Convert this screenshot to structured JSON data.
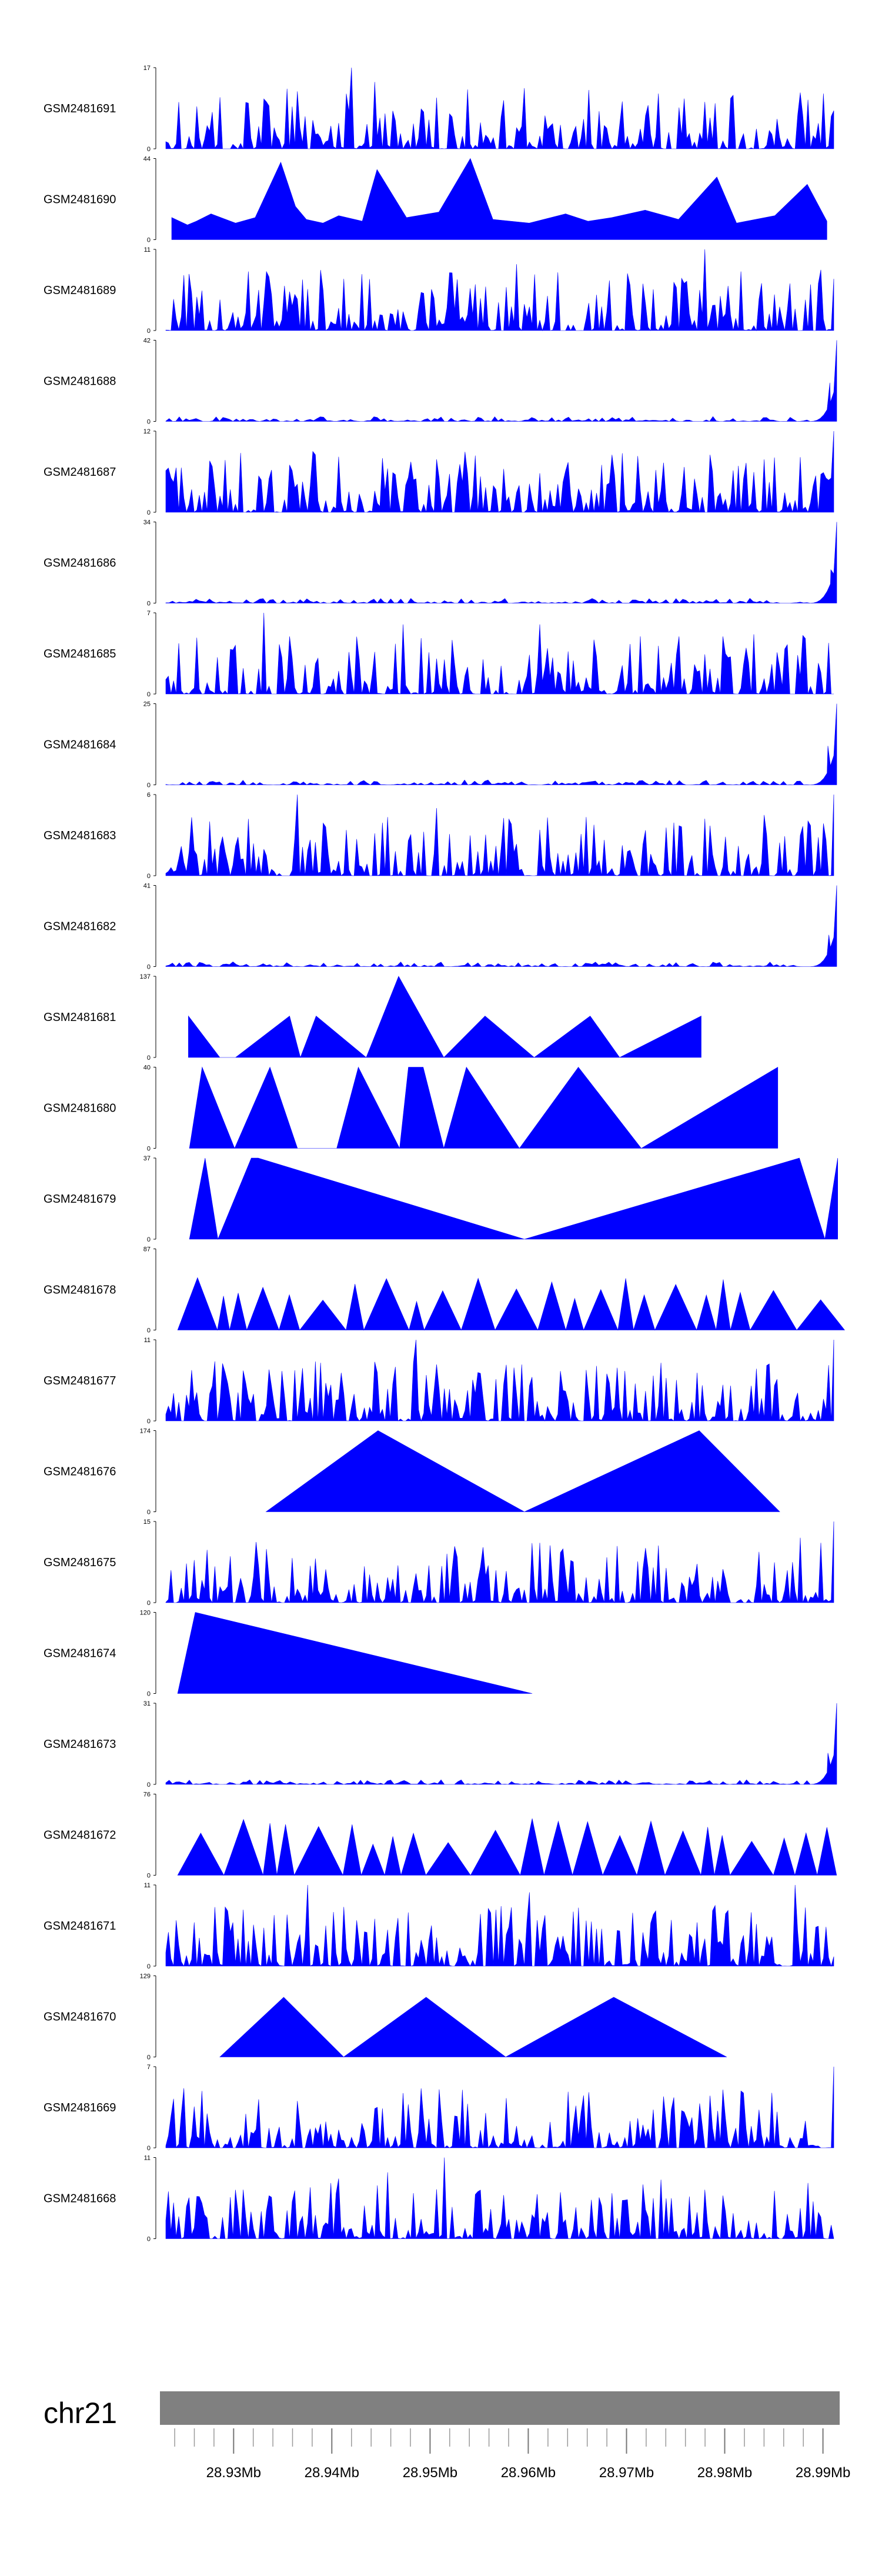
{
  "chart_data": {
    "type": "area",
    "title": "",
    "xlabel": "",
    "ylabel": "",
    "chromosome": "chr21",
    "xlim": [
      28.9225,
      28.9917
    ],
    "x_tick_labels": [
      "28.93Mb",
      "28.94Mb",
      "28.95Mb",
      "28.96Mb",
      "28.97Mb",
      "28.98Mb",
      "28.99Mb"
    ],
    "x_tick_values": [
      28.93,
      28.94,
      28.95,
      28.96,
      28.97,
      28.98,
      28.99
    ],
    "fill_color": "#0000ff",
    "ideogram_color": "#808080",
    "tracks": [
      {
        "name": "GSM2481691",
        "ymax": 17,
        "tick_labels": [
          "17",
          "0"
        ],
        "pattern": "dense",
        "peaks": [
          [
            28.9419,
            17
          ],
          [
            28.9444,
            14
          ],
          [
            28.9336,
            9
          ],
          [
            28.9381,
            6
          ],
          [
            28.9913,
            8
          ]
        ],
        "x": [],
        "y": []
      },
      {
        "name": "GSM2481690",
        "ymax": 44,
        "tick_labels": [
          "44",
          "0"
        ],
        "pattern": "sparse-triangles",
        "peaks": [],
        "x": [
          28.9237,
          28.9253,
          28.9262,
          28.9277,
          28.9302,
          28.9322,
          28.9348,
          28.9363,
          28.9374,
          28.9391,
          28.9407,
          28.9431,
          28.9446,
          28.9476,
          28.9509,
          28.9541,
          28.9564,
          28.9601,
          28.9638,
          28.9661,
          28.9685,
          28.9719,
          28.9753,
          28.9792,
          28.9812,
          28.9851,
          28.9884,
          28.9904
        ],
        "y": [
          12,
          8,
          10,
          14,
          9,
          12,
          42,
          18,
          11,
          9,
          13,
          10,
          38,
          12,
          15,
          44,
          11,
          9,
          14,
          10,
          12,
          16,
          11,
          34,
          9,
          13,
          30,
          10
        ]
      },
      {
        "name": "GSM2481689",
        "ymax": 11,
        "tick_labels": [
          "11",
          "0"
        ],
        "pattern": "dense",
        "peaks": [
          [
            28.9779,
            11
          ],
          [
            28.9587,
            9
          ],
          [
            28.9412,
            7
          ],
          [
            28.9316,
            8
          ]
        ],
        "x": [],
        "y": []
      },
      {
        "name": "GSM2481688",
        "ymax": 42,
        "tick_labels": [
          "42",
          "0"
        ],
        "pattern": "low-rise",
        "peaks": [
          [
            28.9914,
            42
          ],
          [
            28.9907,
            20
          ]
        ],
        "x": [],
        "y": []
      },
      {
        "name": "GSM2481687",
        "ymax": 12,
        "tick_labels": [
          "12",
          "0"
        ],
        "pattern": "dense",
        "peaks": [
          [
            28.9912,
            12
          ],
          [
            28.9451,
            8
          ],
          [
            28.9676,
            7
          ]
        ],
        "x": [],
        "y": []
      },
      {
        "name": "GSM2481686",
        "ymax": 34,
        "tick_labels": [
          "34",
          "0"
        ],
        "pattern": "low-rise",
        "peaks": [
          [
            28.9914,
            34
          ],
          [
            28.9908,
            14
          ]
        ],
        "x": [],
        "y": []
      },
      {
        "name": "GSM2481685",
        "ymax": 7,
        "tick_labels": [
          "7",
          "0"
        ],
        "pattern": "dense",
        "peaks": [
          [
            28.9331,
            7
          ],
          [
            28.9473,
            6
          ],
          [
            28.9612,
            6
          ]
        ],
        "x": [],
        "y": []
      },
      {
        "name": "GSM2481684",
        "ymax": 25,
        "tick_labels": [
          "25",
          "0"
        ],
        "pattern": "low-rise",
        "peaks": [
          [
            28.9914,
            25
          ],
          [
            28.9905,
            12
          ]
        ],
        "x": [],
        "y": []
      },
      {
        "name": "GSM2481683",
        "ymax": 6,
        "tick_labels": [
          "6",
          "0"
        ],
        "pattern": "dense",
        "peaks": [
          [
            28.9364,
            6
          ],
          [
            28.9506,
            5
          ],
          [
            28.9912,
            6
          ]
        ],
        "x": [],
        "y": []
      },
      {
        "name": "GSM2481682",
        "ymax": 41,
        "tick_labels": [
          "41",
          "0"
        ],
        "pattern": "low-rise",
        "peaks": [
          [
            28.9914,
            41
          ],
          [
            28.9906,
            16
          ]
        ],
        "x": [],
        "y": []
      },
      {
        "name": "GSM2481681",
        "ymax": 137,
        "tick_labels": [
          "137",
          "0"
        ],
        "pattern": "sparse-triangles",
        "peaks": [],
        "x": [
          28.9254,
          28.9286,
          28.9302,
          28.9357,
          28.9368,
          28.9384,
          28.9435,
          28.9468,
          28.9514,
          28.9556,
          28.9606,
          28.9663,
          28.9693,
          28.9776
        ],
        "y": [
          70,
          0,
          0,
          70,
          0,
          70,
          0,
          137,
          0,
          70,
          0,
          70,
          0,
          70
        ]
      },
      {
        "name": "GSM2481680",
        "ymax": 40,
        "tick_labels": [
          "40",
          "0"
        ],
        "pattern": "sparse-triangles",
        "peaks": [],
        "x": [
          28.9255,
          28.9268,
          28.9301,
          28.9337,
          28.9365,
          28.9405,
          28.9427,
          28.9469,
          28.9478,
          28.9493,
          28.9514,
          28.9537,
          28.9591,
          28.9651,
          28.9715,
          28.9854
        ],
        "y": [
          0,
          40,
          0,
          40,
          0,
          0,
          40,
          0,
          40,
          40,
          0,
          40,
          0,
          40,
          0,
          40
        ]
      },
      {
        "name": "GSM2481679",
        "ymax": 37,
        "tick_labels": [
          "37",
          "0"
        ],
        "pattern": "sparse-triangles",
        "peaks": [],
        "x": [
          28.9255,
          28.9271,
          28.9284,
          28.9318,
          28.9325,
          28.9596,
          28.9876,
          28.9902,
          28.9915
        ],
        "y": [
          0,
          37,
          0,
          37,
          37,
          0,
          37,
          0,
          37
        ]
      },
      {
        "name": "GSM2481678",
        "ymax": 87,
        "tick_labels": [
          "87",
          "0"
        ],
        "pattern": "sparse-triangles",
        "peaks": [],
        "x": [],
        "y": []
      },
      {
        "name": "GSM2481677",
        "ymax": 11,
        "tick_labels": [
          "11",
          "0"
        ],
        "pattern": "dense",
        "peaks": [
          [
            28.9485,
            11
          ],
          [
            28.9443,
            8
          ],
          [
            28.9913,
            11
          ]
        ],
        "x": [],
        "y": []
      },
      {
        "name": "GSM2481676",
        "ymax": 174,
        "tick_labels": [
          "174",
          "0"
        ],
        "pattern": "sparse-triangles",
        "peaks": [],
        "x": [
          28.9333,
          28.9447,
          28.9596,
          28.9774,
          28.9856
        ],
        "y": [
          0,
          174,
          0,
          174,
          0
        ]
      },
      {
        "name": "GSM2481675",
        "ymax": 15,
        "tick_labels": [
          "15",
          "0"
        ],
        "pattern": "dense",
        "peaks": [
          [
            28.9913,
            15
          ],
          [
            28.9878,
            12
          ],
          [
            28.9605,
            11
          ]
        ],
        "x": [],
        "y": []
      },
      {
        "name": "GSM2481674",
        "ymax": 120,
        "tick_labels": [
          "120",
          "0"
        ],
        "pattern": "sparse-triangles",
        "peaks": [],
        "x": [
          28.9243,
          28.9261,
          28.9604
        ],
        "y": [
          0,
          120,
          0
        ]
      },
      {
        "name": "GSM2481673",
        "ymax": 31,
        "tick_labels": [
          "31",
          "0"
        ],
        "pattern": "low-rise",
        "peaks": [
          [
            28.9914,
            31
          ],
          [
            28.9905,
            12
          ]
        ],
        "x": [],
        "y": []
      },
      {
        "name": "GSM2481672",
        "ymax": 76,
        "tick_labels": [
          "76",
          "0"
        ],
        "pattern": "sparse-triangles",
        "peaks": [],
        "x": [],
        "y": []
      },
      {
        "name": "GSM2481671",
        "ymax": 11,
        "tick_labels": [
          "11",
          "0"
        ],
        "pattern": "dense",
        "peaks": [
          [
            28.9376,
            11
          ],
          [
            28.9602,
            10
          ],
          [
            28.9871,
            11
          ]
        ],
        "x": [],
        "y": []
      },
      {
        "name": "GSM2481670",
        "ymax": 129,
        "tick_labels": [
          "129",
          "0"
        ],
        "pattern": "sparse-triangles",
        "peaks": [],
        "x": [
          28.9286,
          28.9351,
          28.9412,
          28.9496,
          28.9577,
          28.9687,
          28.9802
        ],
        "y": [
          0,
          95,
          0,
          95,
          0,
          95,
          0
        ]
      },
      {
        "name": "GSM2481669",
        "ymax": 7,
        "tick_labels": [
          "7",
          "0"
        ],
        "pattern": "dense",
        "peaks": [
          [
            28.9913,
            7
          ],
          [
            28.9533,
            5
          ]
        ],
        "x": [],
        "y": []
      },
      {
        "name": "GSM2481668",
        "ymax": 11,
        "tick_labels": [
          "11",
          "0"
        ],
        "pattern": "dense",
        "peaks": [
          [
            28.9515,
            11
          ],
          [
            28.9458,
            9
          ],
          [
            28.9734,
            8
          ]
        ],
        "x": [],
        "y": []
      }
    ]
  }
}
